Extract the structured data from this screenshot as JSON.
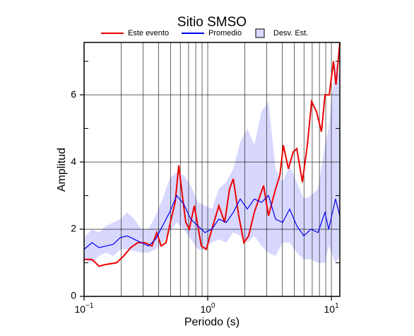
{
  "chart_data": {
    "type": "line",
    "title": "Sitio SMSO",
    "xlabel": "Periodo (s)",
    "ylabel": "Amplitud",
    "xscale": "log",
    "xlim": [
      0.1,
      11.7
    ],
    "ylim": [
      0,
      7.56
    ],
    "xticks": [
      {
        "value": 0.1,
        "label": "10",
        "exponent": "−1"
      },
      {
        "value": 1,
        "label": "10",
        "exponent": "0"
      },
      {
        "value": 10,
        "label": "10",
        "exponent": "1"
      }
    ],
    "xgrid": [
      0.2,
      0.3,
      0.4,
      0.5,
      0.6,
      0.7,
      0.8,
      0.9,
      2,
      3,
      4,
      5,
      6,
      7,
      8,
      9
    ],
    "yticks": [
      0,
      2,
      4,
      6
    ],
    "yminor": [
      1,
      3,
      5,
      7
    ],
    "grid": true,
    "band": {
      "name": "Desv. Est.",
      "color": "#d8d8ff",
      "x": [
        0.1,
        0.116,
        0.132,
        0.15,
        0.172,
        0.196,
        0.223,
        0.255,
        0.29,
        0.331,
        0.378,
        0.431,
        0.491,
        0.56,
        0.639,
        0.729,
        0.832,
        0.949,
        1.08,
        1.23,
        1.41,
        1.61,
        1.83,
        2.09,
        2.38,
        2.72,
        3.1,
        3.54,
        4.03,
        4.6,
        5.25,
        5.99,
        6.83,
        7.79,
        8.88,
        9.5,
        10.8,
        11.7
      ],
      "lower": [
        1.1,
        1.0,
        1.2,
        1.3,
        1.2,
        1.4,
        1.4,
        1.35,
        1.3,
        1.3,
        1.4,
        1.6,
        1.9,
        2.2,
        2.0,
        1.7,
        1.4,
        1.4,
        1.6,
        1.7,
        1.6,
        1.9,
        1.8,
        1.6,
        1.8,
        1.5,
        1.3,
        1.2,
        1.6,
        1.6,
        1.3,
        1.1,
        1.1,
        1.0,
        1.0,
        1.5,
        1.0,
        1.2
      ],
      "upper": [
        1.75,
        2.0,
        1.9,
        2.1,
        2.2,
        2.3,
        2.5,
        2.3,
        2.0,
        2.0,
        2.4,
        2.9,
        3.5,
        3.7,
        3.6,
        3.3,
        2.8,
        2.7,
        2.6,
        3.2,
        3.4,
        3.8,
        4.6,
        5.0,
        4.5,
        5.5,
        5.8,
        3.8,
        3.4,
        3.9,
        3.4,
        2.9,
        3.0,
        3.2,
        4.5,
        5.0,
        7.0,
        6.5
      ]
    },
    "series": [
      {
        "name": "Este evento",
        "color": "#ee0000",
        "x": [
          0.1,
          0.116,
          0.132,
          0.15,
          0.183,
          0.209,
          0.238,
          0.272,
          0.31,
          0.354,
          0.387,
          0.42,
          0.46,
          0.505,
          0.546,
          0.583,
          0.623,
          0.665,
          0.71,
          0.779,
          0.888,
          0.974,
          1.08,
          1.23,
          1.37,
          1.5,
          1.61,
          1.78,
          1.96,
          2.14,
          2.38,
          2.65,
          2.83,
          3.1,
          3.54,
          3.83,
          4.09,
          4.49,
          4.92,
          5.25,
          5.83,
          6.39,
          6.92,
          7.58,
          8.31,
          8.88,
          9.61,
          10.4,
          10.9,
          11.7
        ],
        "values": [
          1.1,
          1.1,
          0.9,
          0.95,
          1.0,
          1.2,
          1.45,
          1.6,
          1.6,
          1.5,
          1.9,
          1.5,
          1.6,
          2.3,
          2.8,
          3.9,
          3.0,
          2.2,
          2.0,
          2.7,
          1.5,
          1.4,
          2.0,
          2.7,
          2.2,
          3.2,
          3.5,
          2.4,
          1.6,
          1.8,
          2.5,
          3.0,
          3.3,
          2.4,
          3.2,
          3.6,
          4.5,
          3.8,
          4.3,
          4.4,
          3.4,
          4.5,
          5.8,
          5.5,
          4.9,
          6.0,
          6.0,
          7.0,
          6.3,
          7.56
        ]
      },
      {
        "name": "Promedio",
        "color": "#0000ee",
        "x": [
          0.1,
          0.116,
          0.132,
          0.15,
          0.172,
          0.196,
          0.223,
          0.255,
          0.29,
          0.331,
          0.378,
          0.431,
          0.491,
          0.56,
          0.639,
          0.729,
          0.832,
          0.949,
          1.08,
          1.23,
          1.41,
          1.61,
          1.83,
          2.09,
          2.38,
          2.72,
          3.1,
          3.54,
          4.03,
          4.6,
          5.25,
          5.99,
          6.83,
          7.79,
          8.88,
          9.5,
          10.8,
          11.7
        ],
        "values": [
          1.4,
          1.6,
          1.45,
          1.5,
          1.55,
          1.75,
          1.8,
          1.7,
          1.6,
          1.5,
          1.7,
          2.1,
          2.5,
          3.0,
          2.75,
          2.3,
          2.1,
          1.9,
          2.0,
          2.3,
          2.2,
          2.5,
          2.9,
          2.6,
          2.9,
          2.8,
          3.0,
          2.3,
          2.2,
          2.6,
          2.1,
          1.8,
          2.0,
          1.9,
          2.5,
          2.0,
          2.9,
          2.4
        ]
      }
    ]
  }
}
